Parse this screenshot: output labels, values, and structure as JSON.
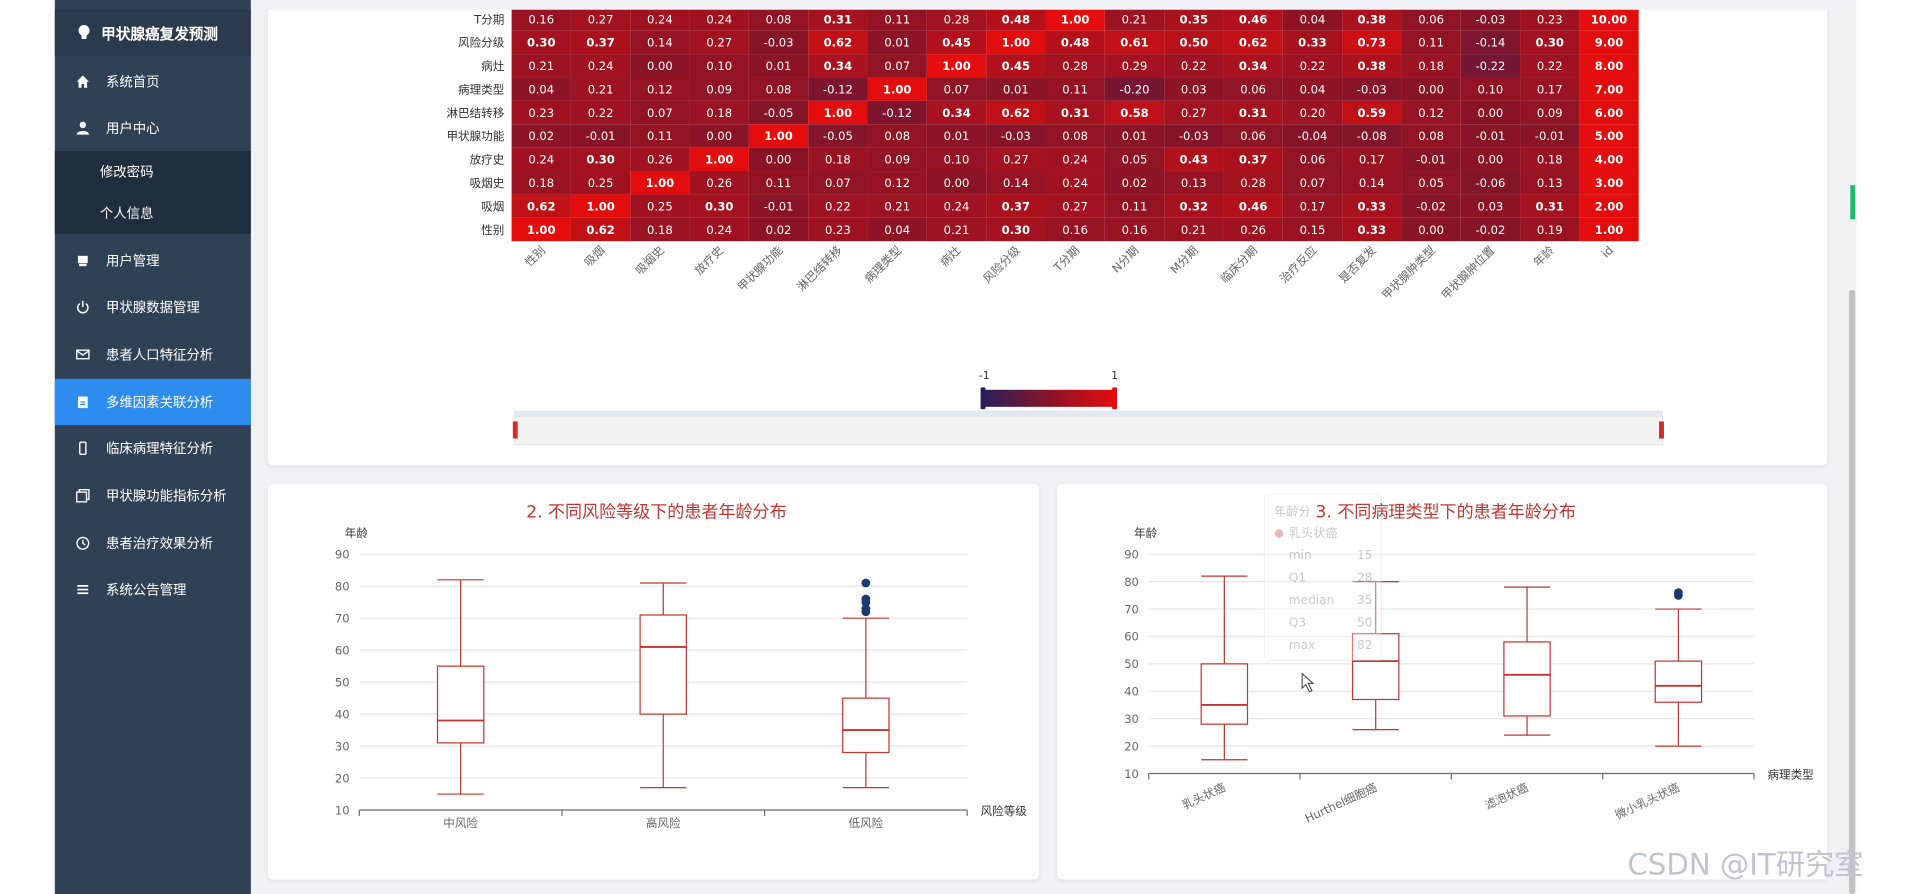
{
  "app": {
    "title": "甲状腺癌复发预测"
  },
  "sidebar": {
    "items": [
      {
        "label": "系统首页",
        "icon": "home-icon"
      },
      {
        "label": "用户中心",
        "icon": "user-icon"
      },
      {
        "label": "修改密码",
        "icon": ""
      },
      {
        "label": "个人信息",
        "icon": ""
      },
      {
        "label": "用户管理",
        "icon": "printer-icon"
      },
      {
        "label": "甲状腺数据管理",
        "icon": "power-icon"
      },
      {
        "label": "患者人口特征分析",
        "icon": "mail-icon"
      },
      {
        "label": "多维因素关联分析",
        "icon": "clipboard-icon",
        "active": true
      },
      {
        "label": "临床病理特征分析",
        "icon": "phone-icon"
      },
      {
        "label": "甲状腺功能指标分析",
        "icon": "copy-icon"
      },
      {
        "label": "患者治疗效果分析",
        "icon": "clock-icon"
      },
      {
        "label": "系统公告管理",
        "icon": "menu-icon"
      }
    ]
  },
  "visual_map": {
    "min_label": "-1",
    "max_label": "1",
    "low_color": "#2a1f5c",
    "high_color": "#e40d0d"
  },
  "chart_data": [
    {
      "type": "heatmap",
      "title": "",
      "x_labels": [
        "性别",
        "吸烟",
        "吸烟史",
        "放疗史",
        "甲状腺功能",
        "淋巴结转移",
        "病理类型",
        "病灶",
        "风险分级",
        "T分期",
        "N分期",
        "M分期",
        "临床分期",
        "治疗反应",
        "是否复发",
        "甲状腺肿类型",
        "甲状腺肿位置",
        "年龄",
        "id"
      ],
      "y_labels": [
        "T分期",
        "风险分级",
        "病灶",
        "病理类型",
        "淋巴结转移",
        "甲状腺功能",
        "放疗史",
        "吸烟史",
        "吸烟",
        "性别"
      ],
      "values": [
        [
          0.16,
          0.27,
          0.24,
          0.24,
          0.08,
          0.31,
          0.11,
          0.28,
          0.48,
          1.0,
          0.21,
          0.35,
          0.46,
          0.04,
          0.38,
          0.06,
          -0.03,
          0.23,
          10.0
        ],
        [
          0.3,
          0.37,
          0.14,
          0.27,
          -0.03,
          0.62,
          0.01,
          0.45,
          1.0,
          0.48,
          0.61,
          0.5,
          0.62,
          0.33,
          0.73,
          0.11,
          -0.14,
          0.3,
          9.0
        ],
        [
          0.21,
          0.24,
          0.0,
          0.1,
          0.01,
          0.34,
          0.07,
          1.0,
          0.45,
          0.28,
          0.29,
          0.22,
          0.34,
          0.22,
          0.38,
          0.18,
          -0.22,
          0.22,
          8.0
        ],
        [
          0.04,
          0.21,
          0.12,
          0.09,
          0.08,
          -0.12,
          1.0,
          0.07,
          0.01,
          0.11,
          -0.2,
          0.03,
          0.06,
          0.04,
          -0.03,
          0.0,
          0.1,
          0.17,
          7.0
        ],
        [
          0.23,
          0.22,
          0.07,
          0.18,
          -0.05,
          1.0,
          -0.12,
          0.34,
          0.62,
          0.31,
          0.58,
          0.27,
          0.31,
          0.2,
          0.59,
          0.12,
          0.0,
          0.09,
          6.0
        ],
        [
          0.02,
          -0.01,
          0.11,
          0.0,
          1.0,
          -0.05,
          0.08,
          0.01,
          -0.03,
          0.08,
          0.01,
          -0.03,
          0.06,
          -0.04,
          -0.08,
          0.08,
          -0.01,
          -0.01,
          5.0
        ],
        [
          0.24,
          0.3,
          0.26,
          1.0,
          0.0,
          0.18,
          0.09,
          0.1,
          0.27,
          0.24,
          0.05,
          0.43,
          0.37,
          0.06,
          0.17,
          -0.01,
          0.0,
          0.18,
          4.0
        ],
        [
          0.18,
          0.25,
          1.0,
          0.26,
          0.11,
          0.07,
          0.12,
          0.0,
          0.14,
          0.24,
          0.02,
          0.13,
          0.28,
          0.07,
          0.14,
          0.05,
          -0.06,
          0.13,
          3.0
        ],
        [
          0.62,
          1.0,
          0.25,
          0.3,
          -0.01,
          0.22,
          0.21,
          0.24,
          0.37,
          0.27,
          0.11,
          0.32,
          0.46,
          0.17,
          0.33,
          -0.02,
          0.03,
          0.31,
          2.0
        ],
        [
          1.0,
          0.62,
          0.18,
          0.24,
          0.02,
          0.23,
          0.04,
          0.21,
          0.3,
          0.16,
          0.16,
          0.21,
          0.26,
          0.15,
          0.33,
          0.0,
          -0.02,
          0.19,
          1.0
        ]
      ],
      "range": [
        -1,
        1
      ]
    },
    {
      "type": "boxplot",
      "title": "2. 不同风险等级下的患者年龄分布",
      "xlabel": "风险等级",
      "ylabel": "年龄",
      "ylim": [
        10,
        90
      ],
      "yticks": [
        10,
        20,
        30,
        40,
        50,
        60,
        70,
        80,
        90
      ],
      "categories": [
        "中风险",
        "高风险",
        "低风险"
      ],
      "boxes": [
        {
          "min": 15,
          "q1": 31,
          "median": 38,
          "q3": 55,
          "max": 82,
          "outliers": []
        },
        {
          "min": 17,
          "q1": 40,
          "median": 61,
          "q3": 71,
          "max": 81,
          "outliers": []
        },
        {
          "min": 17,
          "q1": 28,
          "median": 35,
          "q3": 45,
          "max": 70,
          "outliers": [
            72,
            73,
            75,
            76,
            81
          ]
        }
      ]
    },
    {
      "type": "boxplot",
      "title": "3. 不同病理类型下的患者年龄分布",
      "xlabel": "病理类型",
      "ylabel": "年龄",
      "ylim": [
        10,
        90
      ],
      "yticks": [
        10,
        20,
        30,
        40,
        50,
        60,
        70,
        80,
        90
      ],
      "categories": [
        "乳头状癌",
        "Hurthel细胞癌",
        "滤泡状癌",
        "微小乳头状癌"
      ],
      "boxes": [
        {
          "min": 15,
          "q1": 28,
          "median": 35,
          "q3": 50,
          "max": 82,
          "outliers": []
        },
        {
          "min": 26,
          "q1": 37,
          "median": 51,
          "q3": 61,
          "max": 80,
          "outliers": []
        },
        {
          "min": 24,
          "q1": 31,
          "median": 46,
          "q3": 58,
          "max": 78,
          "outliers": []
        },
        {
          "min": 20,
          "q1": 36,
          "median": 42,
          "q3": 51,
          "max": 70,
          "outliers": [
            75,
            76
          ]
        }
      ]
    }
  ],
  "tooltip": {
    "title": "年龄分",
    "series": "乳头状癌",
    "rows": [
      {
        "label": "min",
        "value": "15"
      },
      {
        "label": "Q1",
        "value": "28"
      },
      {
        "label": "median",
        "value": "35"
      },
      {
        "label": "Q3",
        "value": "50"
      },
      {
        "label": "max",
        "value": "82"
      }
    ]
  },
  "watermark": "CSDN @IT研究室"
}
